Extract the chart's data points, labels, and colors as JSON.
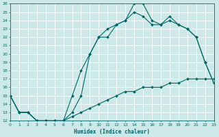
{
  "xlabel": "Humidex (Indice chaleur)",
  "xlim": [
    0,
    23
  ],
  "ylim": [
    12,
    26
  ],
  "xticks": [
    0,
    1,
    2,
    3,
    4,
    5,
    6,
    7,
    8,
    9,
    10,
    11,
    12,
    13,
    14,
    15,
    16,
    17,
    18,
    19,
    20,
    21,
    22,
    23
  ],
  "yticks": [
    12,
    13,
    14,
    15,
    16,
    17,
    18,
    19,
    20,
    21,
    22,
    23,
    24,
    25,
    26
  ],
  "background_color": "#cce8e8",
  "grid_color": "#b0d0d0",
  "line_color": "#006666",
  "line1_x": [
    0,
    1,
    2,
    3,
    4,
    5,
    6,
    7,
    8,
    9,
    10,
    11,
    12,
    13,
    14,
    15,
    16,
    17,
    18,
    19,
    20,
    21,
    22,
    23
  ],
  "line1_y": [
    15,
    13,
    13,
    12,
    12,
    12,
    12,
    13,
    15,
    20,
    22,
    22,
    23.5,
    24,
    26,
    26,
    24,
    23.5,
    24.5,
    23.5,
    23,
    22,
    19,
    16.5
  ],
  "line2_x": [
    0,
    1,
    2,
    3,
    4,
    5,
    6,
    7,
    8,
    9,
    10,
    11,
    12,
    13,
    14,
    15,
    16,
    17,
    18,
    19,
    20,
    21,
    22,
    23
  ],
  "line2_y": [
    15,
    13,
    13,
    12,
    12,
    12,
    12,
    15,
    18,
    20,
    22,
    23,
    23.5,
    24,
    25,
    24.5,
    23.5,
    23.5,
    24,
    23.5,
    23,
    22,
    19,
    16.5
  ],
  "line3_x": [
    0,
    1,
    2,
    3,
    4,
    5,
    6,
    7,
    8,
    9,
    10,
    11,
    12,
    13,
    14,
    15,
    16,
    17,
    18,
    19,
    20,
    21,
    22,
    23
  ],
  "line3_y": [
    15,
    13,
    13,
    12,
    12,
    12,
    12,
    12.5,
    13,
    13.5,
    14,
    14.5,
    15,
    15.5,
    15.5,
    16,
    16,
    16,
    16.5,
    16.5,
    17,
    17,
    17,
    17
  ]
}
